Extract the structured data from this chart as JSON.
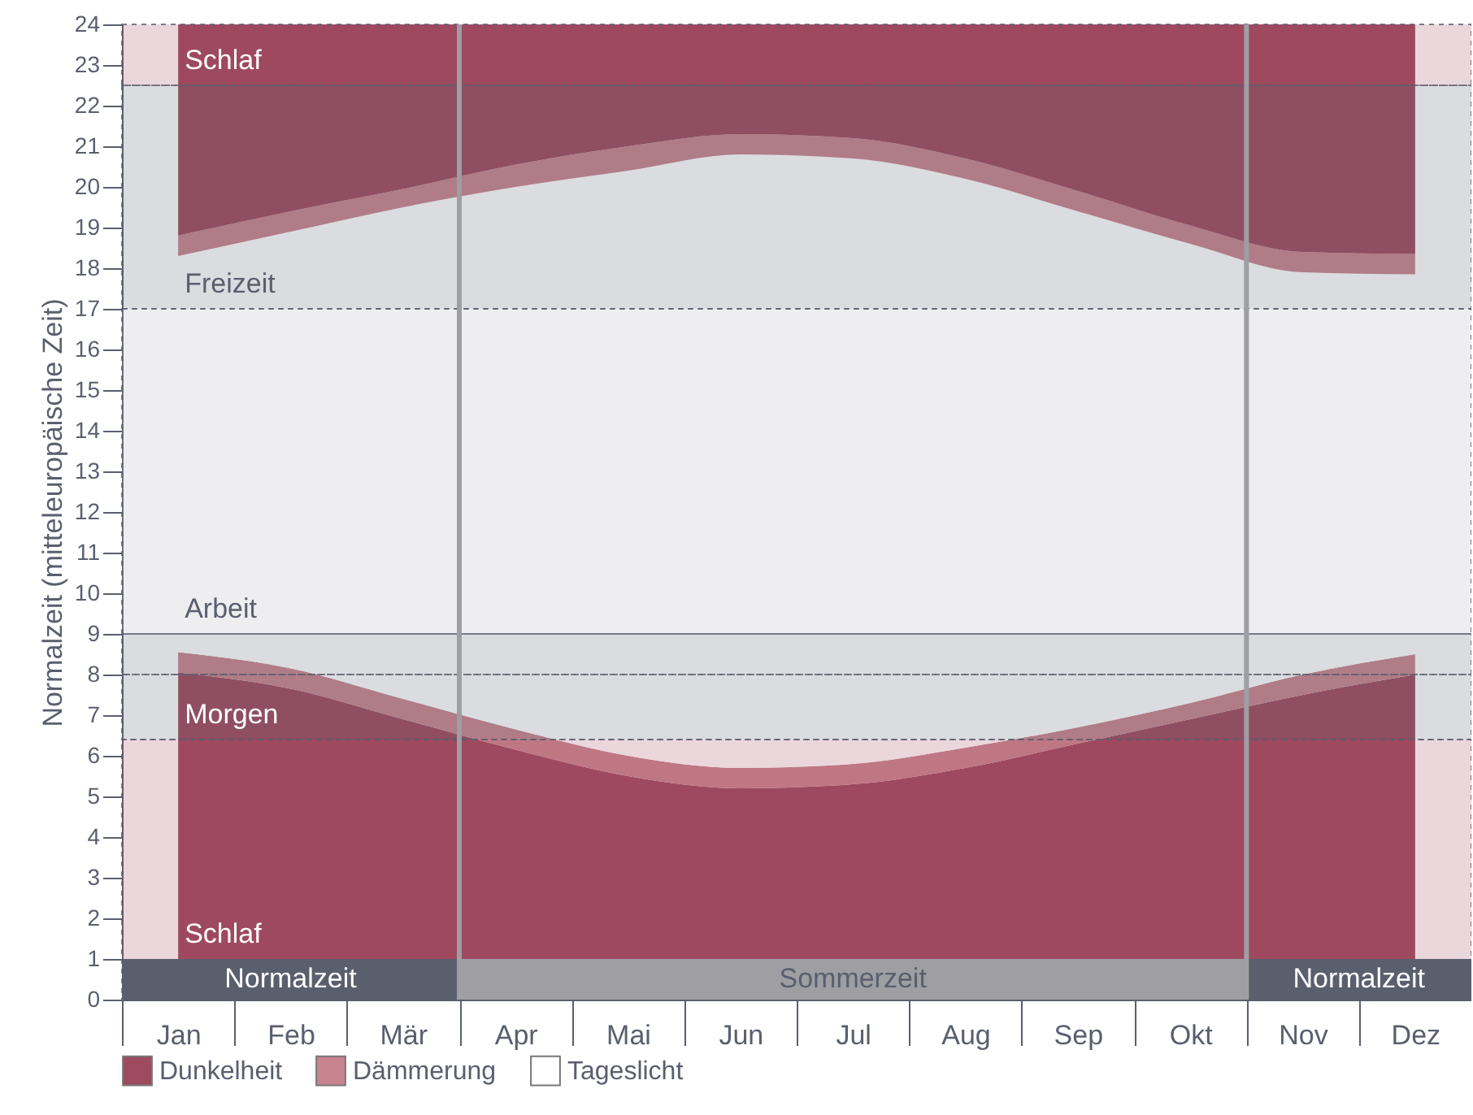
{
  "chart_data": {
    "type": "area",
    "ylabel": "Normalzeit (mitteleuropäische Zeit)",
    "stacked": true,
    "legend": "bottom",
    "categories": [
      "Jan",
      "Feb",
      "Mär",
      "Apr",
      "Mai",
      "Jun",
      "Jul",
      "Aug",
      "Sep",
      "Okt",
      "Nov",
      "Dez"
    ],
    "ylim": [
      0,
      24
    ],
    "yticks": [
      0,
      1,
      2,
      3,
      4,
      5,
      6,
      7,
      8,
      9,
      10,
      11,
      12,
      13,
      14,
      15,
      16,
      17,
      18,
      19,
      20,
      21,
      22,
      23,
      24
    ],
    "series": [
      {
        "name": "Dunkelheit",
        "color": "#9e4a5f",
        "values": [
          8.05,
          7.65,
          6.9,
          6.15,
          5.5,
          5.2,
          5.3,
          5.7,
          6.3,
          6.9,
          7.5,
          8.0
        ]
      },
      {
        "name": "Dämmerung",
        "color": "#c8848f",
        "values": [
          0.5,
          0.5,
          0.5,
          0.5,
          0.5,
          0.5,
          0.5,
          0.5,
          0.4,
          0.4,
          0.5,
          0.5
        ]
      },
      {
        "name": "Tageslicht",
        "color": "#ffffff",
        "values": [
          9.75,
          10.75,
          12.1,
          13.35,
          14.4,
          15.1,
          14.9,
          14.0,
          12.7,
          11.3,
          9.9,
          9.35
        ]
      },
      {
        "color": "#c8848f",
        "values": [
          0.5,
          0.5,
          0.45,
          0.55,
          0.6,
          0.5,
          0.5,
          0.5,
          0.5,
          0.45,
          0.5,
          0.5
        ]
      },
      {
        "color": "#9e4a5f",
        "values": [
          5.2,
          4.6,
          4.05,
          3.45,
          3.0,
          2.7,
          2.8,
          3.3,
          4.1,
          4.95,
          5.6,
          5.65
        ]
      }
    ],
    "bands": [
      {
        "axis": "y",
        "from": 22.5,
        "to": 24,
        "label": "Schlaf",
        "color": "#9e4a5f"
      },
      {
        "axis": "y",
        "from": 17,
        "to": 22.5,
        "label": "Freizeit",
        "color": "#5a5f6e"
      },
      {
        "axis": "y",
        "from": 9,
        "to": 17,
        "label": "Arbeit",
        "color": "#b0b3bc"
      },
      {
        "axis": "y",
        "from": 8,
        "to": 9,
        "label": null,
        "color": "#5a5f6e"
      },
      {
        "axis": "y",
        "from": 6.4,
        "to": 8,
        "label": "Morgen",
        "color": "#5a5f6e"
      },
      {
        "axis": "y",
        "from": 0,
        "to": 6.4,
        "label": "Schlaf",
        "color": "#9e4a5f"
      },
      {
        "axis": "x",
        "from": "Jan",
        "to": "Mär",
        "label": "Normalzeit",
        "color": "#5a5f6e"
      },
      {
        "axis": "x",
        "from": "Apr",
        "to": "Okt",
        "label": "Sommerzeit",
        "color": "#9e9ea3"
      },
      {
        "axis": "x",
        "from": "Nov",
        "to": "Dez",
        "label": "Normalzeit",
        "color": "#5a5f6e"
      }
    ]
  }
}
